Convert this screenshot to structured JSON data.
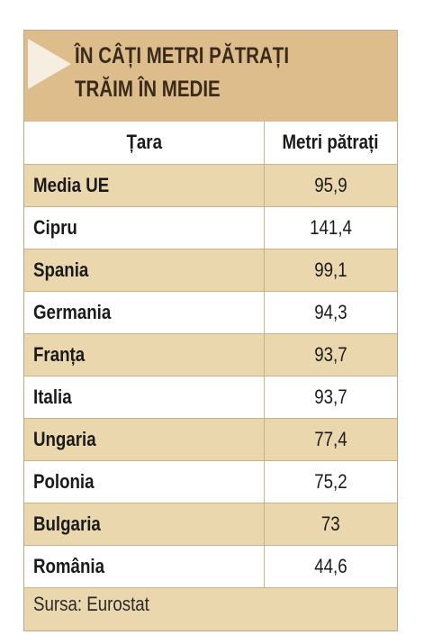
{
  "header": {
    "title_line1": "ÎN CÂȚI METRI PĂTRAȚI",
    "title_line2": "TRĂIM ÎN MEDIE",
    "arrow_icon": "play-arrow-icon"
  },
  "table": {
    "columns": [
      "Țara",
      "Metri pătrați"
    ],
    "rows": [
      {
        "country": "Media UE",
        "value": "95,9"
      },
      {
        "country": "Cipru",
        "value": "141,4"
      },
      {
        "country": "Spania",
        "value": "99,1"
      },
      {
        "country": "Germania",
        "value": "94,3"
      },
      {
        "country": "Franța",
        "value": "93,7"
      },
      {
        "country": "Italia",
        "value": "93,7"
      },
      {
        "country": "Ungaria",
        "value": "77,4"
      },
      {
        "country": "Polonia",
        "value": "75,2"
      },
      {
        "country": "Bulgaria",
        "value": "73"
      },
      {
        "country": "România",
        "value": "44,6"
      }
    ]
  },
  "source": "Sursa: Eurostat",
  "colors": {
    "header_bg": "#dcbd8b",
    "row_tan": "#ebd7ae",
    "row_white": "#ffffff",
    "arrow": "#f6eee0"
  },
  "chart_data": {
    "type": "table",
    "title": "ÎN CÂȚI METRI PĂTRAȚI TRĂIM ÎN MEDIE",
    "columns": [
      "Țara",
      "Metri pătrați"
    ],
    "categories": [
      "Media UE",
      "Cipru",
      "Spania",
      "Germania",
      "Franța",
      "Italia",
      "Ungaria",
      "Polonia",
      "Bulgaria",
      "România"
    ],
    "values": [
      95.9,
      141.4,
      99.1,
      94.3,
      93.7,
      93.7,
      77.4,
      75.2,
      73,
      44.6
    ]
  }
}
